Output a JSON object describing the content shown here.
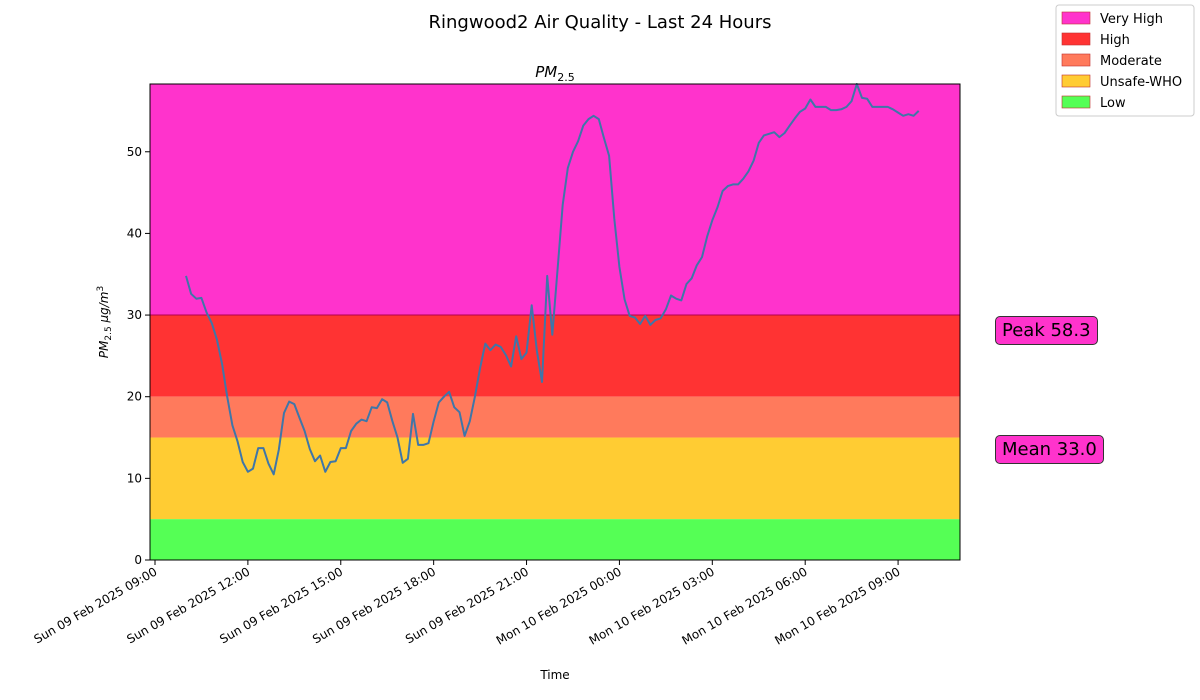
{
  "chart_data": {
    "type": "line",
    "title": "Ringwood2 Air Quality - Last 24 Hours",
    "subtitle_main": "PM",
    "subtitle_sub": "2.5",
    "xlabel": "Time",
    "ylabel_main": "PM",
    "ylabel_sub": "2.5",
    "ylabel_unit": " µg/m",
    "ylabel_sup": "3",
    "ylim": [
      0,
      58.3
    ],
    "yticks": [
      "0",
      "10",
      "20",
      "30",
      "40",
      "50"
    ],
    "xlim": [
      "2025-02-09 09:00",
      "2025-02-10 11:00"
    ],
    "xticks": [
      {
        "t": "2025-02-09 09:00",
        "label": "Sun 09 Feb 2025 09:00"
      },
      {
        "t": "2025-02-09 12:00",
        "label": "Sun 09 Feb 2025 12:00"
      },
      {
        "t": "2025-02-09 15:00",
        "label": "Sun 09 Feb 2025 15:00"
      },
      {
        "t": "2025-02-09 18:00",
        "label": "Sun 09 Feb 2025 18:00"
      },
      {
        "t": "2025-02-09 21:00",
        "label": "Sun 09 Feb 2025 21:00"
      },
      {
        "t": "2025-02-10 00:00",
        "label": "Mon 10 Feb 2025 00:00"
      },
      {
        "t": "2025-02-10 03:00",
        "label": "Mon 10 Feb 2025 03:00"
      },
      {
        "t": "2025-02-10 06:00",
        "label": "Mon 10 Feb 2025 06:00"
      },
      {
        "t": "2025-02-10 09:00",
        "label": "Mon 10 Feb 2025 09:00"
      }
    ],
    "bands": [
      {
        "name": "Very High",
        "from": 30,
        "to": 58.3,
        "color": "#ff33cc"
      },
      {
        "name": "High",
        "from": 20,
        "to": 30,
        "color": "#ff3333"
      },
      {
        "name": "Moderate",
        "from": 15,
        "to": 20,
        "color": "#ff7a5c"
      },
      {
        "name": "Unsafe-WHO",
        "from": 5,
        "to": 15,
        "color": "#ffcc33"
      },
      {
        "name": "Low",
        "from": 0,
        "to": 5,
        "color": "#55ff55"
      }
    ],
    "legend_position": "top-right",
    "line_color": "#3f76a8",
    "series": [
      {
        "points": [
          [
            "2025-02-09 10:00",
            34.8
          ],
          [
            "2025-02-09 10:10",
            32.6
          ],
          [
            "2025-02-09 10:20",
            32.0
          ],
          [
            "2025-02-09 10:30",
            32.1
          ],
          [
            "2025-02-09 10:40",
            30.3
          ],
          [
            "2025-02-09 10:50",
            29.0
          ],
          [
            "2025-02-09 11:00",
            27.0
          ],
          [
            "2025-02-09 11:10",
            24.0
          ],
          [
            "2025-02-09 11:20",
            20.0
          ],
          [
            "2025-02-09 11:30",
            16.5
          ],
          [
            "2025-02-09 11:40",
            14.5
          ],
          [
            "2025-02-09 11:50",
            12.0
          ],
          [
            "2025-02-09 12:00",
            10.8
          ],
          [
            "2025-02-09 12:10",
            11.2
          ],
          [
            "2025-02-09 12:20",
            13.7
          ],
          [
            "2025-02-09 12:30",
            13.7
          ],
          [
            "2025-02-09 12:40",
            11.8
          ],
          [
            "2025-02-09 12:50",
            10.5
          ],
          [
            "2025-02-09 13:00",
            13.5
          ],
          [
            "2025-02-09 13:10",
            18.0
          ],
          [
            "2025-02-09 13:20",
            19.4
          ],
          [
            "2025-02-09 13:30",
            19.1
          ],
          [
            "2025-02-09 13:40",
            17.4
          ],
          [
            "2025-02-09 13:50",
            15.8
          ],
          [
            "2025-02-09 14:00",
            13.6
          ],
          [
            "2025-02-09 14:10",
            12.1
          ],
          [
            "2025-02-09 14:20",
            12.8
          ],
          [
            "2025-02-09 14:30",
            10.8
          ],
          [
            "2025-02-09 14:40",
            12.0
          ],
          [
            "2025-02-09 14:50",
            12.1
          ],
          [
            "2025-02-09 15:00",
            13.7
          ],
          [
            "2025-02-09 15:10",
            13.7
          ],
          [
            "2025-02-09 15:20",
            15.8
          ],
          [
            "2025-02-09 15:30",
            16.7
          ],
          [
            "2025-02-09 15:40",
            17.2
          ],
          [
            "2025-02-09 15:50",
            17.0
          ],
          [
            "2025-02-09 16:00",
            18.7
          ],
          [
            "2025-02-09 16:10",
            18.6
          ],
          [
            "2025-02-09 16:20",
            19.7
          ],
          [
            "2025-02-09 16:30",
            19.3
          ],
          [
            "2025-02-09 16:40",
            17.0
          ],
          [
            "2025-02-09 16:50",
            15.0
          ],
          [
            "2025-02-09 17:00",
            11.9
          ],
          [
            "2025-02-09 17:10",
            12.4
          ],
          [
            "2025-02-09 17:20",
            17.9
          ],
          [
            "2025-02-09 17:30",
            14.1
          ],
          [
            "2025-02-09 17:40",
            14.1
          ],
          [
            "2025-02-09 17:50",
            14.3
          ],
          [
            "2025-02-09 18:00",
            17.0
          ],
          [
            "2025-02-09 18:10",
            19.3
          ],
          [
            "2025-02-09 18:20",
            20.0
          ],
          [
            "2025-02-09 18:30",
            20.6
          ],
          [
            "2025-02-09 18:40",
            18.7
          ],
          [
            "2025-02-09 18:50",
            18.1
          ],
          [
            "2025-02-09 19:00",
            15.2
          ],
          [
            "2025-02-09 19:10",
            17.0
          ],
          [
            "2025-02-09 19:20",
            20.0
          ],
          [
            "2025-02-09 19:30",
            23.5
          ],
          [
            "2025-02-09 19:40",
            26.5
          ],
          [
            "2025-02-09 19:50",
            25.7
          ],
          [
            "2025-02-09 20:00",
            26.4
          ],
          [
            "2025-02-09 20:10",
            26.1
          ],
          [
            "2025-02-09 20:20",
            25.1
          ],
          [
            "2025-02-09 20:30",
            23.7
          ],
          [
            "2025-02-09 20:40",
            27.4
          ],
          [
            "2025-02-09 20:50",
            24.6
          ],
          [
            "2025-02-09 21:00",
            25.4
          ],
          [
            "2025-02-09 21:10",
            31.2
          ],
          [
            "2025-02-09 21:20",
            25.6
          ],
          [
            "2025-02-09 21:30",
            21.8
          ],
          [
            "2025-02-09 21:40",
            34.8
          ],
          [
            "2025-02-09 21:50",
            27.6
          ],
          [
            "2025-02-09 22:00",
            35.5
          ],
          [
            "2025-02-09 22:10",
            43.5
          ],
          [
            "2025-02-09 22:20",
            48.0
          ],
          [
            "2025-02-09 22:30",
            50.0
          ],
          [
            "2025-02-09 22:40",
            51.3
          ],
          [
            "2025-02-09 22:50",
            53.2
          ],
          [
            "2025-02-09 23:00",
            54.0
          ],
          [
            "2025-02-09 23:10",
            54.4
          ],
          [
            "2025-02-09 23:20",
            54.0
          ],
          [
            "2025-02-09 23:30",
            51.7
          ],
          [
            "2025-02-09 23:40",
            49.5
          ],
          [
            "2025-02-09 23:50",
            41.8
          ],
          [
            "2025-02-10 00:00",
            35.9
          ],
          [
            "2025-02-10 00:10",
            31.9
          ],
          [
            "2025-02-10 00:20",
            29.9
          ],
          [
            "2025-02-10 00:30",
            29.7
          ],
          [
            "2025-02-10 00:40",
            28.9
          ],
          [
            "2025-02-10 00:50",
            29.9
          ],
          [
            "2025-02-10 01:00",
            28.8
          ],
          [
            "2025-02-10 01:10",
            29.4
          ],
          [
            "2025-02-10 01:20",
            29.6
          ],
          [
            "2025-02-10 01:30",
            30.7
          ],
          [
            "2025-02-10 01:40",
            32.4
          ],
          [
            "2025-02-10 01:50",
            32.0
          ],
          [
            "2025-02-10 02:00",
            31.8
          ],
          [
            "2025-02-10 02:10",
            33.8
          ],
          [
            "2025-02-10 02:20",
            34.5
          ],
          [
            "2025-02-10 02:30",
            36.1
          ],
          [
            "2025-02-10 02:40",
            37.1
          ],
          [
            "2025-02-10 02:50",
            39.6
          ],
          [
            "2025-02-10 03:00",
            41.6
          ],
          [
            "2025-02-10 03:10",
            43.2
          ],
          [
            "2025-02-10 03:20",
            45.2
          ],
          [
            "2025-02-10 03:30",
            45.8
          ],
          [
            "2025-02-10 03:40",
            46.0
          ],
          [
            "2025-02-10 03:50",
            46.0
          ],
          [
            "2025-02-10 04:00",
            46.7
          ],
          [
            "2025-02-10 04:10",
            47.6
          ],
          [
            "2025-02-10 04:20",
            48.9
          ],
          [
            "2025-02-10 04:30",
            51.1
          ],
          [
            "2025-02-10 04:40",
            52.0
          ],
          [
            "2025-02-10 04:50",
            52.2
          ],
          [
            "2025-02-10 05:00",
            52.4
          ],
          [
            "2025-02-10 05:10",
            51.8
          ],
          [
            "2025-02-10 05:20",
            52.3
          ],
          [
            "2025-02-10 05:30",
            53.2
          ],
          [
            "2025-02-10 05:40",
            54.1
          ],
          [
            "2025-02-10 05:50",
            54.9
          ],
          [
            "2025-02-10 06:00",
            55.3
          ],
          [
            "2025-02-10 06:10",
            56.4
          ],
          [
            "2025-02-10 06:20",
            55.5
          ],
          [
            "2025-02-10 06:30",
            55.5
          ],
          [
            "2025-02-10 06:40",
            55.5
          ],
          [
            "2025-02-10 06:50",
            55.1
          ],
          [
            "2025-02-10 07:00",
            55.1
          ],
          [
            "2025-02-10 07:10",
            55.2
          ],
          [
            "2025-02-10 07:20",
            55.5
          ],
          [
            "2025-02-10 07:30",
            56.2
          ],
          [
            "2025-02-10 07:40",
            58.3
          ],
          [
            "2025-02-10 07:50",
            56.6
          ],
          [
            "2025-02-10 08:00",
            56.5
          ],
          [
            "2025-02-10 08:10",
            55.5
          ],
          [
            "2025-02-10 08:20",
            55.5
          ],
          [
            "2025-02-10 08:30",
            55.5
          ],
          [
            "2025-02-10 08:40",
            55.5
          ],
          [
            "2025-02-10 08:50",
            55.2
          ],
          [
            "2025-02-10 09:00",
            54.8
          ],
          [
            "2025-02-10 09:10",
            54.4
          ],
          [
            "2025-02-10 09:20",
            54.6
          ],
          [
            "2025-02-10 09:30",
            54.4
          ],
          [
            "2025-02-10 09:40",
            55.0
          ]
        ]
      }
    ],
    "annotations": {
      "peak": "Peak 58.3",
      "mean": "Mean 33.0",
      "box_color": "#ff33cc"
    }
  }
}
